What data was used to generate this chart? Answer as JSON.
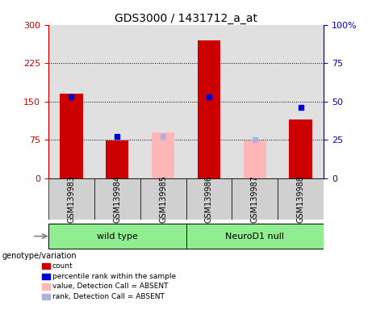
{
  "title": "GDS3000 / 1431712_a_at",
  "samples": [
    "GSM139983",
    "GSM139984",
    "GSM139985",
    "GSM139986",
    "GSM139987",
    "GSM139988"
  ],
  "red_bars": [
    165,
    73,
    0,
    270,
    0,
    115
  ],
  "blue_squares_val": [
    53,
    27,
    null,
    53,
    null,
    46
  ],
  "pink_bars": [
    0,
    0,
    90,
    0,
    73,
    0
  ],
  "lightblue_squares_val": [
    null,
    null,
    27,
    null,
    25,
    null
  ],
  "groups": [
    {
      "label": "wild type",
      "start": 0,
      "end": 3,
      "color": "#90EE90"
    },
    {
      "label": "NeuroD1 null",
      "start": 3,
      "end": 6,
      "color": "#90EE90"
    }
  ],
  "ylim_left": [
    0,
    300
  ],
  "ylim_right": [
    0,
    100
  ],
  "yticks_left": [
    0,
    75,
    150,
    225,
    300
  ],
  "yticks_right": [
    0,
    25,
    50,
    75,
    100
  ],
  "ytick_labels_left": [
    "0",
    "75",
    "150",
    "225",
    "300"
  ],
  "ytick_labels_right": [
    "0",
    "25",
    "50",
    "75",
    "100%"
  ],
  "left_axis_color": "#cc0000",
  "right_axis_color": "#0000cc",
  "red_bar_color": "#cc0000",
  "pink_bar_color": "#ffb6b6",
  "blue_sq_color": "#0000cc",
  "lightblue_sq_color": "#b0b0dd",
  "genotype_label": "genotype/variation",
  "legend_items": [
    {
      "color": "#cc0000",
      "label": "count"
    },
    {
      "color": "#0000cc",
      "label": "percentile rank within the sample"
    },
    {
      "color": "#ffb6b6",
      "label": "value, Detection Call = ABSENT"
    },
    {
      "color": "#b0b0dd",
      "label": "rank, Detection Call = ABSENT"
    }
  ]
}
